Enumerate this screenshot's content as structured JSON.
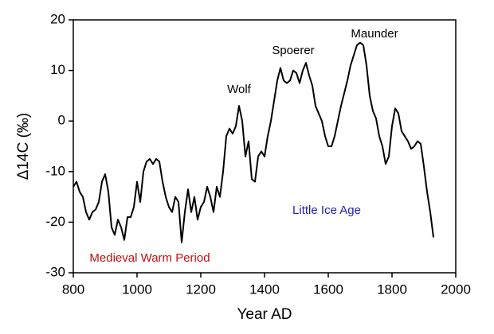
{
  "chart_data": {
    "type": "line",
    "xlabel": "Year AD",
    "ylabel": "Δ14C (‰)",
    "x": [
      800,
      810,
      820,
      830,
      840,
      850,
      860,
      870,
      880,
      890,
      900,
      910,
      920,
      930,
      940,
      950,
      960,
      970,
      980,
      990,
      1000,
      1010,
      1020,
      1030,
      1040,
      1050,
      1060,
      1070,
      1080,
      1090,
      1100,
      1110,
      1120,
      1130,
      1140,
      1150,
      1160,
      1170,
      1180,
      1190,
      1200,
      1210,
      1220,
      1230,
      1240,
      1250,
      1260,
      1270,
      1280,
      1290,
      1300,
      1310,
      1320,
      1330,
      1340,
      1350,
      1360,
      1370,
      1380,
      1390,
      1400,
      1410,
      1420,
      1430,
      1440,
      1450,
      1460,
      1470,
      1480,
      1490,
      1500,
      1510,
      1520,
      1530,
      1540,
      1550,
      1560,
      1570,
      1580,
      1590,
      1600,
      1610,
      1620,
      1630,
      1640,
      1650,
      1660,
      1670,
      1680,
      1690,
      1700,
      1710,
      1720,
      1730,
      1740,
      1750,
      1760,
      1770,
      1780,
      1790,
      1800,
      1810,
      1820,
      1830,
      1840,
      1850,
      1860,
      1870,
      1880,
      1890,
      1900,
      1910,
      1920,
      1930
    ],
    "values": [
      -13,
      -12,
      -14,
      -15,
      -18,
      -19.5,
      -18,
      -17.5,
      -16,
      -12,
      -10.5,
      -14,
      -21,
      -22.5,
      -19.5,
      -21,
      -23.5,
      -19,
      -19,
      -17,
      -12,
      -16,
      -10,
      -8,
      -7.5,
      -8.5,
      -7.5,
      -8,
      -12,
      -15,
      -17,
      -18,
      -15,
      -16,
      -24,
      -18,
      -13.5,
      -18,
      -15,
      -19.5,
      -17,
      -16,
      -13,
      -15,
      -18,
      -13,
      -15,
      -10,
      -3,
      -1.5,
      -2.5,
      -1,
      3,
      0,
      -7,
      -4,
      -11.5,
      -12,
      -7,
      -6,
      -7,
      -3,
      0,
      4,
      8,
      10.5,
      8,
      7.5,
      8,
      10,
      9.5,
      7.5,
      10,
      11.5,
      9,
      7,
      3,
      1.5,
      0,
      -3,
      -5,
      -5,
      -3,
      0,
      3,
      5.5,
      8,
      11,
      13,
      15,
      15.5,
      15,
      11,
      5,
      2,
      0.5,
      -3,
      -5,
      -8.5,
      -7,
      -1,
      2.5,
      1.5,
      -2,
      -3,
      -4,
      -5.5,
      -5,
      -4,
      -4.5,
      -9,
      -14,
      -18,
      -23
    ],
    "color": "#000000",
    "xlim": [
      800,
      2000
    ],
    "xticks": [
      800,
      1000,
      1200,
      1400,
      1600,
      1800,
      2000
    ],
    "ylim": [
      -30,
      20
    ],
    "yticks": [
      -30,
      -20,
      -10,
      0,
      10,
      20
    ],
    "annotations": [
      {
        "text": "Wolf",
        "color": "#000000"
      },
      {
        "text": "Spoerer",
        "color": "#000000"
      },
      {
        "text": "Maunder",
        "color": "#000000"
      },
      {
        "text": "Little Ice Age",
        "color": "#1f1fb4"
      },
      {
        "text": "Medieval Warm Period",
        "color": "#c01010"
      }
    ]
  }
}
